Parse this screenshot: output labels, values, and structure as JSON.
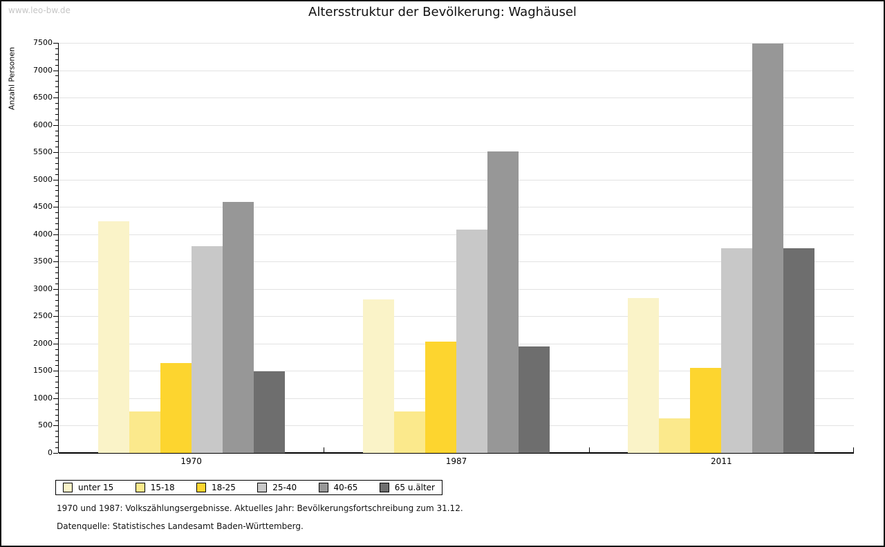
{
  "watermark": "www.leo-bw.de",
  "chart_data": {
    "type": "bar",
    "title": "Altersstruktur der Bevölkerung: Waghäusel",
    "ylabel": "Anzahl Personen",
    "xlabel": "",
    "categories": [
      "1970",
      "1987",
      "2011"
    ],
    "series": [
      {
        "name": "unter 15",
        "color": "#FAF3C8",
        "values": [
          4240,
          2810,
          2830
        ]
      },
      {
        "name": "15-18",
        "color": "#FBE98C",
        "values": [
          760,
          760,
          630
        ]
      },
      {
        "name": "18-25",
        "color": "#FDD52F",
        "values": [
          1640,
          2030,
          1560
        ]
      },
      {
        "name": "25-40",
        "color": "#C8C8C8",
        "values": [
          3780,
          4090,
          3740
        ]
      },
      {
        "name": "40-65",
        "color": "#979797",
        "values": [
          4590,
          5520,
          7490
        ]
      },
      {
        "name": "65 u.älter",
        "color": "#6E6E6E",
        "values": [
          1490,
          1950,
          3740
        ]
      }
    ],
    "ylim": [
      0,
      7500
    ],
    "ytick_step": 500,
    "minor_tick_step": 100,
    "grid": true,
    "legend_position": "bottom"
  },
  "footnotes": [
    "1970 und 1987: Volkszählungsergebnisse. Aktuelles Jahr: Bevölkerungsfortschreibung zum 31.12.",
    "Datenquelle: Statistisches Landesamt Baden-Württemberg."
  ]
}
